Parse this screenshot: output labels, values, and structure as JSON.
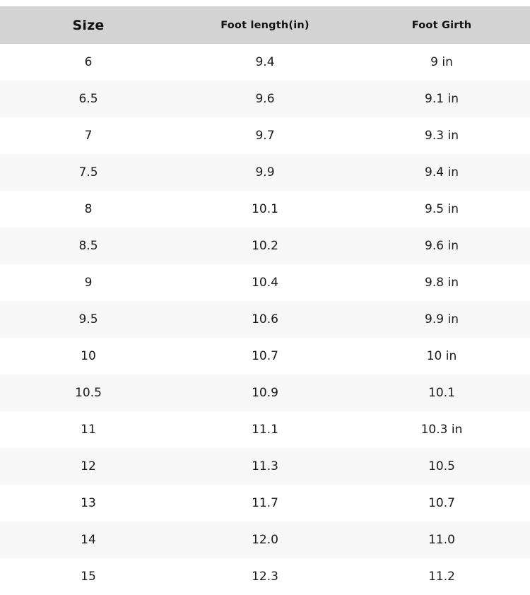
{
  "page": {
    "description": "Shoe size conversion chart"
  },
  "colors": {
    "header_background": "#d3d3d3",
    "row_background": "#ffffff",
    "row_alternate_background": "#f7f7f7",
    "text": "#1a1a1a"
  },
  "chart_data": {
    "type": "table",
    "title": "",
    "columns": [
      "Size",
      "Foot length(in)",
      "Foot Girth"
    ],
    "rows": [
      [
        "6",
        "9.4",
        "9 in"
      ],
      [
        "6.5",
        "9.6",
        "9.1 in"
      ],
      [
        "7",
        "9.7",
        "9.3 in"
      ],
      [
        "7.5",
        "9.9",
        "9.4 in"
      ],
      [
        "8",
        "10.1",
        "9.5 in"
      ],
      [
        "8.5",
        "10.2",
        "9.6 in"
      ],
      [
        "9",
        "10.4",
        "9.8 in"
      ],
      [
        "9.5",
        "10.6",
        "9.9 in"
      ],
      [
        "10",
        "10.7",
        "10 in"
      ],
      [
        "10.5",
        "10.9",
        "10.1"
      ],
      [
        "11",
        "11.1",
        "10.3 in"
      ],
      [
        "12",
        "11.3",
        "10.5"
      ],
      [
        "13",
        "11.7",
        "10.7"
      ],
      [
        "14",
        "12.0",
        "11.0"
      ],
      [
        "15",
        "12.3",
        "11.2"
      ]
    ],
    "layout": {
      "columns_equal_width": true,
      "text_align": "center",
      "alternating_rows": true,
      "grid": false
    }
  }
}
